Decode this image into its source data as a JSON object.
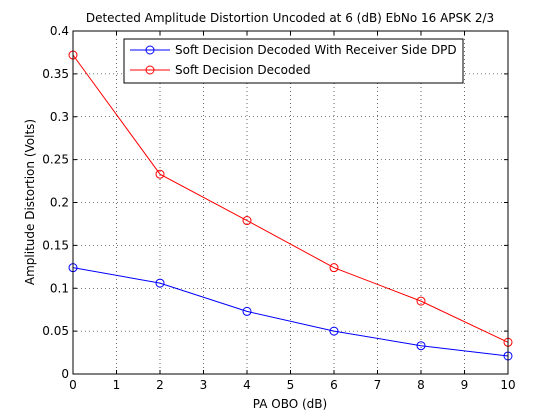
{
  "chart_data": {
    "type": "line",
    "title": "Detected Amplitude Distortion Uncoded at 6 (dB) EbNo 16 APSK 2/3",
    "xlabel": "PA OBO (dB)",
    "ylabel": "Amplitude Distortion (Volts)",
    "xlim": [
      0,
      10
    ],
    "ylim": [
      0,
      0.4
    ],
    "xticks": [
      0,
      1,
      2,
      3,
      4,
      5,
      6,
      7,
      8,
      9,
      10
    ],
    "xtick_labels": [
      "0",
      "1",
      "2",
      "3",
      "4",
      "5",
      "6",
      "7",
      "8",
      "9",
      "10"
    ],
    "yticks": [
      0,
      0.05,
      0.1,
      0.15,
      0.2,
      0.25,
      0.3,
      0.35,
      0.4
    ],
    "ytick_labels": [
      "0",
      "0.05",
      "0.1",
      "0.15",
      "0.2",
      "0.25",
      "0.3",
      "0.35",
      "0.4"
    ],
    "grid": true,
    "legend_position": "top-right",
    "series": [
      {
        "name": "Soft Decision Decoded With Receiver Side DPD",
        "color": "#0000ff",
        "marker": "circle",
        "x": [
          0,
          2,
          4,
          6,
          8,
          10
        ],
        "y": [
          0.124,
          0.106,
          0.073,
          0.05,
          0.033,
          0.021
        ]
      },
      {
        "name": "Soft Decision Decoded",
        "color": "#ff0000",
        "marker": "circle",
        "x": [
          0,
          2,
          4,
          6,
          8,
          10
        ],
        "y": [
          0.372,
          0.233,
          0.179,
          0.124,
          0.085,
          0.037
        ]
      }
    ]
  }
}
